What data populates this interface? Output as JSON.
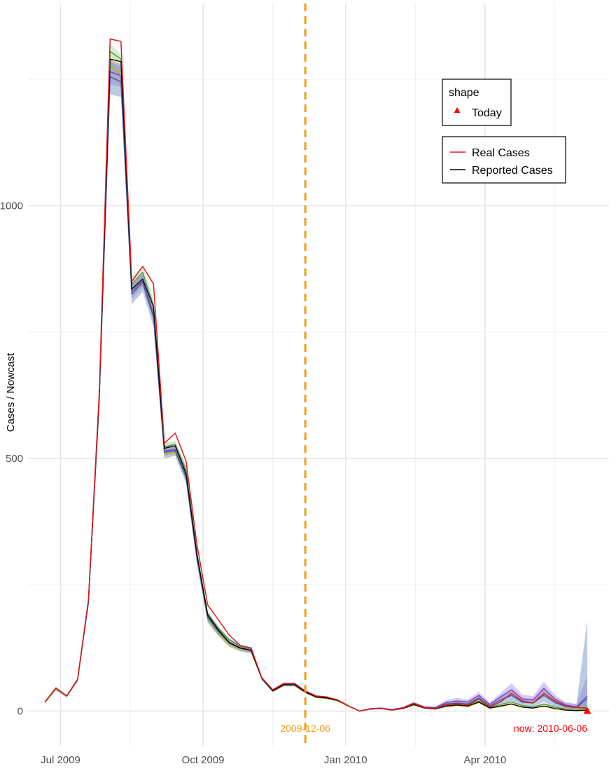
{
  "chart_data": {
    "type": "line",
    "title": "",
    "xlabel": "",
    "ylabel": "Cases / Nowcast",
    "x_range": [
      "2009-06-10",
      "2010-06-20"
    ],
    "ylim": [
      -70,
      1400
    ],
    "x_ticks": [
      {
        "date": "2009-07-01",
        "label": "Jul 2009"
      },
      {
        "date": "2009-10-01",
        "label": "Oct 2009"
      },
      {
        "date": "2010-01-01",
        "label": "Jan 2010"
      },
      {
        "date": "2010-04-01",
        "label": "Apr 2010"
      }
    ],
    "x_minor_gridlines": [
      "2009-08-15",
      "2009-11-15",
      "2010-02-15",
      "2010-05-16"
    ],
    "y_ticks": [
      0,
      500,
      1000
    ],
    "y_minor_gridlines": [
      250,
      750,
      1250
    ],
    "grid": true,
    "x": [
      "2009-06-21",
      "2009-06-28",
      "2009-07-05",
      "2009-07-12",
      "2009-07-19",
      "2009-07-26",
      "2009-08-02",
      "2009-08-09",
      "2009-08-16",
      "2009-08-23",
      "2009-08-30",
      "2009-09-06",
      "2009-09-13",
      "2009-09-20",
      "2009-09-27",
      "2009-10-04",
      "2009-10-11",
      "2009-10-18",
      "2009-10-25",
      "2009-11-01",
      "2009-11-08",
      "2009-11-15",
      "2009-11-22",
      "2009-11-29",
      "2009-12-06",
      "2009-12-13",
      "2009-12-20",
      "2009-12-27",
      "2010-01-03",
      "2010-01-10",
      "2010-01-17",
      "2010-01-24",
      "2010-01-31",
      "2010-02-07",
      "2010-02-14",
      "2010-02-21",
      "2010-02-28",
      "2010-03-07",
      "2010-03-14",
      "2010-03-21",
      "2010-03-28",
      "2010-04-04",
      "2010-04-11",
      "2010-04-18",
      "2010-04-25",
      "2010-05-02",
      "2010-05-09",
      "2010-05-16",
      "2010-05-23",
      "2010-05-30",
      "2010-06-06"
    ],
    "series": [
      {
        "name": "Real Cases",
        "color": "#e41a1c",
        "values": [
          18,
          45,
          30,
          62,
          220,
          630,
          1330,
          1325,
          850,
          880,
          845,
          530,
          550,
          495,
          330,
          210,
          180,
          150,
          130,
          125,
          65,
          42,
          55,
          55,
          40,
          30,
          28,
          22,
          10,
          0,
          4,
          5,
          2,
          6,
          15,
          7,
          5,
          12,
          15,
          12,
          24,
          8,
          18,
          35,
          20,
          16,
          35,
          20,
          10,
          8,
          5
        ]
      },
      {
        "name": "Reported Cases",
        "color": "#000000",
        "values": [
          18,
          45,
          30,
          62,
          218,
          620,
          1290,
          1285,
          835,
          855,
          800,
          520,
          525,
          470,
          310,
          190,
          160,
          135,
          125,
          120,
          64,
          40,
          52,
          52,
          38,
          28,
          26,
          21,
          10,
          0,
          4,
          5,
          2,
          5,
          13,
          6,
          4,
          10,
          12,
          10,
          18,
          6,
          10,
          14,
          8,
          6,
          10,
          5,
          2,
          1,
          2
        ]
      }
    ],
    "bands": [
      {
        "color": "#a6d396",
        "lower": [
          17,
          43,
          29,
          60,
          212,
          605,
          1280,
          1270,
          830,
          855,
          790,
          515,
          520,
          470,
          305,
          188,
          158,
          138,
          125,
          120,
          64,
          39,
          51,
          51,
          37,
          27,
          25,
          20,
          9,
          0,
          3,
          4,
          1,
          5,
          12,
          5,
          4,
          9,
          11,
          9,
          17,
          5,
          9,
          13,
          8,
          5,
          9,
          4,
          2,
          1,
          1
        ],
        "upper": [
          20,
          48,
          32,
          66,
          225,
          645,
          1320,
          1300,
          860,
          880,
          815,
          530,
          535,
          485,
          320,
          198,
          168,
          144,
          131,
          126,
          68,
          44,
          55,
          55,
          40,
          30,
          28,
          23,
          11,
          1,
          5,
          6,
          3,
          7,
          15,
          8,
          6,
          12,
          14,
          12,
          21,
          8,
          14,
          19,
          12,
          10,
          16,
          10,
          7,
          6,
          22
        ]
      },
      {
        "color": "#fff176",
        "lower": [
          16,
          42,
          28,
          59,
          210,
          600,
          1250,
          1240,
          815,
          840,
          775,
          500,
          505,
          455,
          295,
          175,
          148,
          125,
          118,
          115,
          61,
          37,
          48,
          49,
          35,
          26,
          23,
          19,
          8,
          0,
          3,
          4,
          1,
          4,
          11,
          4,
          3,
          8,
          10,
          8,
          15,
          4,
          7,
          11,
          6,
          4,
          7,
          3,
          1,
          0,
          0
        ],
        "upper": [
          19,
          47,
          31,
          65,
          222,
          640,
          1300,
          1280,
          845,
          865,
          800,
          520,
          522,
          475,
          315,
          192,
          162,
          140,
          128,
          124,
          66,
          43,
          54,
          54,
          39,
          29,
          27,
          22,
          10,
          1,
          5,
          6,
          3,
          6,
          14,
          7,
          6,
          11,
          13,
          11,
          20,
          7,
          12,
          17,
          10,
          8,
          13,
          8,
          5,
          4,
          14
        ]
      },
      {
        "color": "#b084e0",
        "lower": [
          17,
          42,
          28,
          59,
          210,
          600,
          1240,
          1235,
          815,
          840,
          770,
          505,
          510,
          455,
          295,
          178,
          150,
          130,
          120,
          116,
          62,
          38,
          50,
          50,
          36,
          27,
          24,
          20,
          9,
          0,
          4,
          5,
          2,
          6,
          14,
          6,
          5,
          12,
          15,
          13,
          25,
          9,
          20,
          30,
          16,
          15,
          32,
          16,
          6,
          3,
          2
        ],
        "upper": [
          20,
          47,
          31,
          64,
          222,
          640,
          1290,
          1280,
          845,
          865,
          800,
          525,
          525,
          475,
          315,
          195,
          165,
          142,
          130,
          125,
          67,
          43,
          55,
          55,
          40,
          30,
          28,
          23,
          11,
          1,
          6,
          7,
          4,
          8,
          18,
          10,
          9,
          22,
          26,
          23,
          38,
          17,
          36,
          55,
          32,
          30,
          58,
          32,
          18,
          14,
          70
        ]
      },
      {
        "color": "#6b8cc4",
        "lower": [
          16,
          41,
          27,
          58,
          206,
          590,
          1220,
          1215,
          805,
          830,
          760,
          500,
          505,
          450,
          290,
          175,
          148,
          127,
          118,
          114,
          61,
          37,
          49,
          49,
          35,
          26,
          23,
          19,
          8,
          0,
          3,
          4,
          1,
          5,
          12,
          5,
          4,
          10,
          12,
          10,
          20,
          6,
          14,
          20,
          11,
          9,
          18,
          8,
          3,
          1,
          0
        ],
        "upper": [
          20,
          48,
          32,
          66,
          224,
          645,
          1285,
          1275,
          845,
          865,
          800,
          525,
          527,
          478,
          318,
          196,
          166,
          143,
          131,
          126,
          68,
          44,
          55,
          55,
          40,
          30,
          28,
          23,
          11,
          1,
          6,
          7,
          4,
          8,
          17,
          9,
          8,
          18,
          21,
          19,
          32,
          14,
          30,
          42,
          26,
          24,
          44,
          26,
          16,
          14,
          180
        ]
      }
    ],
    "median_lines": [
      {
        "color": "#4a9a4a",
        "values": [
          18,
          45,
          30,
          62,
          218,
          625,
          1305,
          1290,
          845,
          868,
          802,
          523,
          528,
          478,
          312,
          193,
          163,
          141,
          128,
          123,
          66,
          41,
          53,
          53,
          38,
          28,
          26,
          21,
          10,
          0,
          4,
          5,
          2,
          6,
          14,
          7,
          5,
          11,
          13,
          11,
          20,
          7,
          13,
          18,
          11,
          8,
          14,
          8,
          4,
          3,
          9
        ]
      },
      {
        "color": "#b8b800",
        "values": [
          17,
          44,
          29,
          61,
          215,
          620,
          1275,
          1260,
          830,
          850,
          788,
          510,
          512,
          465,
          305,
          183,
          155,
          132,
          123,
          119,
          64,
          40,
          51,
          51,
          37,
          27,
          25,
          20,
          9,
          0,
          4,
          5,
          2,
          5,
          12,
          6,
          4,
          9,
          11,
          9,
          17,
          6,
          9,
          14,
          8,
          6,
          10,
          5,
          3,
          2,
          6
        ]
      },
      {
        "color": "#7b3fbf",
        "values": [
          18,
          45,
          30,
          62,
          216,
          620,
          1265,
          1257,
          830,
          852,
          785,
          515,
          517,
          465,
          305,
          186,
          158,
          136,
          125,
          121,
          65,
          41,
          53,
          53,
          38,
          28,
          26,
          22,
          10,
          0,
          5,
          6,
          3,
          7,
          16,
          8,
          7,
          17,
          20,
          18,
          31,
          13,
          28,
          42,
          24,
          22,
          45,
          24,
          12,
          8,
          30
        ]
      },
      {
        "color": "#3d5aa0",
        "values": [
          18,
          45,
          30,
          62,
          215,
          618,
          1255,
          1245,
          825,
          848,
          780,
          512,
          515,
          463,
          303,
          185,
          157,
          135,
          124,
          120,
          64,
          40,
          52,
          52,
          37,
          28,
          26,
          21,
          10,
          0,
          4,
          5,
          2,
          6,
          14,
          7,
          6,
          14,
          16,
          14,
          26,
          10,
          22,
          31,
          18,
          16,
          31,
          17,
          9,
          7,
          25
        ]
      }
    ],
    "vline": {
      "date": "2009-12-06",
      "label": "2009-12-06",
      "color": "#f39c12"
    },
    "now": {
      "date": "2010-06-06",
      "value": 0,
      "label": "now: 2010-06-06",
      "color": "#ff0000"
    },
    "legend": {
      "placement": "top-right",
      "shape_title": "shape",
      "shape_item": "Today",
      "line_items": [
        {
          "label": "Real Cases",
          "color": "#e41a1c"
        },
        {
          "label": "Reported Cases",
          "color": "#000000"
        }
      ]
    }
  }
}
